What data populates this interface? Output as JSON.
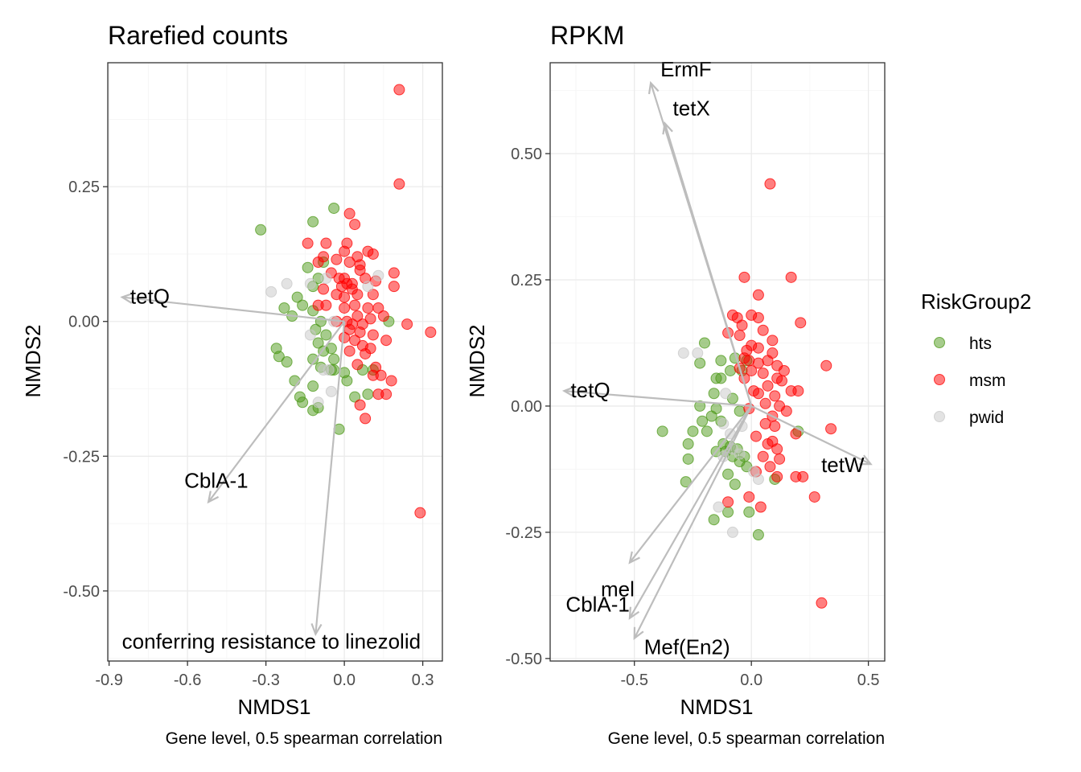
{
  "legend": {
    "title": "RiskGroup2",
    "items": [
      {
        "label": "hts",
        "color": "#4d9a1a"
      },
      {
        "label": "msm",
        "color": "#ff0000"
      },
      {
        "label": "pwid",
        "color": "#c8c8c8"
      }
    ]
  },
  "chart_data": [
    {
      "type": "scatter",
      "title": "Rarefied counts",
      "xlabel": "NMDS1",
      "ylabel": "NMDS2",
      "caption": "Gene level, 0.5 spearman correlation",
      "xlim": [
        -0.905,
        0.375
      ],
      "ylim": [
        -0.63,
        0.48
      ],
      "xticks": [
        -0.9,
        -0.6,
        -0.3,
        0.0,
        0.3
      ],
      "xtick_labels": [
        "-0.9",
        "-0.6",
        "-0.3",
        "0.0",
        "0.3"
      ],
      "yticks": [
        0.25,
        0.0,
        -0.25,
        -0.5
      ],
      "ytick_labels": [
        "0.25",
        "0.00",
        "-0.25",
        "-0.50"
      ],
      "vectors": [
        {
          "label": "tetQ",
          "x": -0.85,
          "y": 0.045
        },
        {
          "label": "CblA-1",
          "x": -0.52,
          "y": -0.335
        },
        {
          "label": "conferring resistance to linezolid",
          "x": -0.11,
          "y": -0.58
        }
      ],
      "series": [
        {
          "name": "hts",
          "points": [
            [
              -0.32,
              0.17
            ],
            [
              -0.12,
              0.185
            ],
            [
              -0.04,
              0.21
            ],
            [
              -0.14,
              0.1
            ],
            [
              -0.1,
              0.08
            ],
            [
              -0.08,
              0.11
            ],
            [
              -0.12,
              0.065
            ],
            [
              -0.18,
              0.045
            ],
            [
              -0.23,
              0.025
            ],
            [
              -0.16,
              0.03
            ],
            [
              -0.2,
              0.01
            ],
            [
              -0.12,
              0.02
            ],
            [
              -0.09,
              0.0
            ],
            [
              -0.11,
              -0.015
            ],
            [
              -0.07,
              -0.025
            ],
            [
              -0.26,
              -0.05
            ],
            [
              -0.25,
              -0.065
            ],
            [
              -0.22,
              -0.075
            ],
            [
              -0.1,
              -0.04
            ],
            [
              -0.08,
              -0.055
            ],
            [
              -0.05,
              -0.05
            ],
            [
              -0.12,
              -0.07
            ],
            [
              -0.09,
              -0.085
            ],
            [
              -0.04,
              -0.07
            ],
            [
              -0.19,
              -0.11
            ],
            [
              -0.12,
              -0.12
            ],
            [
              -0.17,
              -0.14
            ],
            [
              -0.16,
              -0.15
            ],
            [
              -0.12,
              -0.165
            ],
            [
              -0.04,
              -0.09
            ],
            [
              -0.05,
              -0.09
            ],
            [
              -0.0,
              -0.095
            ],
            [
              0.01,
              -0.11
            ],
            [
              0.07,
              -0.09
            ],
            [
              0.04,
              -0.14
            ],
            [
              0.09,
              -0.135
            ],
            [
              -0.1,
              -0.16
            ],
            [
              -0.02,
              -0.2
            ],
            [
              0.11,
              -0.09
            ],
            [
              0.17,
              0.0
            ]
          ]
        },
        {
          "name": "msm",
          "points": [
            [
              0.21,
              0.43
            ],
            [
              0.21,
              0.255
            ],
            [
              0.02,
              0.2
            ],
            [
              0.04,
              0.18
            ],
            [
              -0.14,
              0.145
            ],
            [
              -0.07,
              0.145
            ],
            [
              0.01,
              0.145
            ],
            [
              0.05,
              0.12
            ],
            [
              -0.08,
              0.12
            ],
            [
              -0.03,
              0.115
            ],
            [
              0.0,
              0.13
            ],
            [
              0.11,
              0.125
            ],
            [
              0.09,
              0.13
            ],
            [
              -0.1,
              0.11
            ],
            [
              0.02,
              0.11
            ],
            [
              -0.05,
              0.09
            ],
            [
              0.06,
              0.095
            ],
            [
              0.0,
              0.08
            ],
            [
              -0.02,
              0.08
            ],
            [
              0.03,
              0.07
            ],
            [
              0.08,
              0.08
            ],
            [
              0.19,
              0.09
            ],
            [
              0.03,
              0.06
            ],
            [
              0.01,
              0.07
            ],
            [
              -0.01,
              0.065
            ],
            [
              0.05,
              0.05
            ],
            [
              0.11,
              0.05
            ],
            [
              0.19,
              0.065
            ],
            [
              -0.08,
              0.06
            ],
            [
              -0.03,
              0.05
            ],
            [
              0.0,
              0.045
            ],
            [
              -0.07,
              0.03
            ],
            [
              0.04,
              0.03
            ],
            [
              0.09,
              0.025
            ],
            [
              0.13,
              0.025
            ],
            [
              -0.1,
              0.03
            ],
            [
              0.05,
              0.01
            ],
            [
              -0.03,
              0.0
            ],
            [
              0.01,
              0.0
            ],
            [
              0.03,
              -0.005
            ],
            [
              0.07,
              -0.005
            ],
            [
              0.1,
              0.005
            ],
            [
              0.15,
              0.01
            ],
            [
              0.24,
              -0.005
            ],
            [
              0.33,
              -0.02
            ],
            [
              0.02,
              -0.015
            ],
            [
              0.06,
              -0.02
            ],
            [
              0.11,
              -0.025
            ],
            [
              0.16,
              -0.035
            ],
            [
              -0.0,
              -0.03
            ],
            [
              0.04,
              -0.035
            ],
            [
              0.07,
              -0.045
            ],
            [
              0.1,
              -0.05
            ],
            [
              0.02,
              -0.055
            ],
            [
              0.08,
              -0.06
            ],
            [
              0.05,
              -0.08
            ],
            [
              0.12,
              -0.085
            ],
            [
              0.14,
              -0.1
            ],
            [
              0.11,
              -0.1
            ],
            [
              0.18,
              -0.11
            ],
            [
              0.13,
              -0.135
            ],
            [
              0.16,
              -0.135
            ],
            [
              0.06,
              -0.155
            ],
            [
              0.08,
              -0.18
            ],
            [
              0.29,
              -0.355
            ],
            [
              0.0,
              0.025
            ],
            [
              0.06,
              0.105
            ],
            [
              0.12,
              0.075
            ]
          ]
        },
        {
          "name": "pwid",
          "points": [
            [
              -0.28,
              0.055
            ],
            [
              -0.22,
              0.07
            ],
            [
              -0.13,
              0.07
            ],
            [
              -0.07,
              0.08
            ],
            [
              0.13,
              0.085
            ],
            [
              0.09,
              0.065
            ],
            [
              -0.04,
              0.0
            ],
            [
              -0.13,
              -0.025
            ],
            [
              -0.08,
              -0.09
            ],
            [
              -0.1,
              -0.15
            ],
            [
              -0.05,
              -0.13
            ],
            [
              -0.06,
              -0.09
            ]
          ]
        }
      ]
    },
    {
      "type": "scatter",
      "title": "RPKM",
      "xlabel": "NMDS1",
      "ylabel": "NMDS2",
      "caption": "Gene level, 0.5 spearman correlation",
      "xlim": [
        -0.86,
        0.57
      ],
      "ylim": [
        -0.505,
        0.68
      ],
      "xticks": [
        -0.5,
        0.0,
        0.5
      ],
      "xtick_labels": [
        "-0.5",
        "0.0",
        "0.5"
      ],
      "yticks": [
        0.5,
        0.25,
        0.0,
        -0.25,
        -0.5
      ],
      "ytick_labels": [
        "0.50",
        "0.25",
        "0.00",
        "-0.25",
        "-0.50"
      ],
      "vectors": [
        {
          "label": "ErmF",
          "x": -0.43,
          "y": 0.64
        },
        {
          "label": "tetX",
          "x": -0.37,
          "y": 0.56
        },
        {
          "label": "tetQ",
          "x": -0.8,
          "y": 0.03
        },
        {
          "label": "tetW",
          "x": 0.51,
          "y": -0.115
        },
        {
          "label": "mel",
          "x": -0.52,
          "y": -0.31
        },
        {
          "label": "CblA-1",
          "x": -0.52,
          "y": -0.42
        },
        {
          "label": "Mef(En2)",
          "x": -0.5,
          "y": -0.46
        }
      ],
      "series": [
        {
          "name": "hts",
          "points": [
            [
              -0.2,
              0.125
            ],
            [
              -0.22,
              0.085
            ],
            [
              -0.13,
              0.09
            ],
            [
              -0.15,
              0.055
            ],
            [
              -0.13,
              0.055
            ],
            [
              -0.09,
              0.07
            ],
            [
              -0.07,
              0.095
            ],
            [
              -0.04,
              0.07
            ],
            [
              -0.02,
              0.09
            ],
            [
              -0.16,
              0.025
            ],
            [
              -0.08,
              0.015
            ],
            [
              -0.22,
              0.0
            ],
            [
              -0.15,
              -0.005
            ],
            [
              -0.17,
              -0.02
            ],
            [
              -0.21,
              -0.03
            ],
            [
              -0.13,
              -0.03
            ],
            [
              -0.05,
              -0.01
            ],
            [
              -0.25,
              -0.05
            ],
            [
              -0.19,
              -0.05
            ],
            [
              -0.27,
              -0.075
            ],
            [
              -0.12,
              -0.075
            ],
            [
              -0.09,
              -0.08
            ],
            [
              -0.27,
              -0.105
            ],
            [
              -0.15,
              -0.09
            ],
            [
              -0.11,
              -0.09
            ],
            [
              -0.08,
              -0.1
            ],
            [
              -0.06,
              -0.085
            ],
            [
              -0.03,
              -0.1
            ],
            [
              -0.05,
              -0.11
            ],
            [
              -0.02,
              -0.12
            ],
            [
              -0.1,
              -0.135
            ],
            [
              -0.28,
              -0.15
            ],
            [
              -0.07,
              -0.155
            ],
            [
              -0.1,
              -0.21
            ],
            [
              -0.16,
              -0.225
            ],
            [
              -0.01,
              -0.21
            ],
            [
              0.03,
              -0.255
            ],
            [
              0.1,
              -0.145
            ],
            [
              0.2,
              -0.05
            ],
            [
              -0.38,
              -0.05
            ]
          ]
        },
        {
          "name": "msm",
          "points": [
            [
              0.08,
              0.44
            ],
            [
              -0.03,
              0.255
            ],
            [
              0.17,
              0.255
            ],
            [
              0.03,
              0.22
            ],
            [
              0.21,
              0.165
            ],
            [
              -0.08,
              0.18
            ],
            [
              -0.06,
              0.175
            ],
            [
              0.0,
              0.18
            ],
            [
              0.03,
              0.175
            ],
            [
              -0.04,
              0.16
            ],
            [
              -0.1,
              0.145
            ],
            [
              0.05,
              0.15
            ],
            [
              -0.05,
              0.14
            ],
            [
              0.09,
              0.13
            ],
            [
              -0.0,
              0.12
            ],
            [
              0.03,
              0.115
            ],
            [
              0.09,
              0.105
            ],
            [
              0.32,
              0.08
            ],
            [
              -0.03,
              0.095
            ],
            [
              -0.01,
              0.09
            ],
            [
              0.03,
              0.085
            ],
            [
              0.07,
              0.09
            ],
            [
              0.11,
              0.08
            ],
            [
              -0.05,
              0.075
            ],
            [
              0.0,
              0.07
            ],
            [
              0.05,
              0.065
            ],
            [
              0.11,
              0.055
            ],
            [
              0.13,
              0.05
            ],
            [
              -0.03,
              0.055
            ],
            [
              0.07,
              0.04
            ],
            [
              0.17,
              0.03
            ],
            [
              0.03,
              0.025
            ],
            [
              0.1,
              0.02
            ],
            [
              0.2,
              0.03
            ],
            [
              0.06,
              0.005
            ],
            [
              0.12,
              0.0
            ],
            [
              0.15,
              -0.01
            ],
            [
              -0.01,
              -0.005
            ],
            [
              0.09,
              -0.02
            ],
            [
              0.06,
              -0.035
            ],
            [
              0.1,
              -0.04
            ],
            [
              0.34,
              -0.045
            ],
            [
              0.02,
              -0.06
            ],
            [
              0.09,
              -0.07
            ],
            [
              0.07,
              -0.075
            ],
            [
              0.19,
              -0.055
            ],
            [
              0.11,
              -0.085
            ],
            [
              0.05,
              -0.1
            ],
            [
              0.12,
              -0.105
            ],
            [
              0.02,
              -0.13
            ],
            [
              0.08,
              -0.12
            ],
            [
              0.11,
              -0.14
            ],
            [
              0.19,
              -0.14
            ],
            [
              0.22,
              -0.14
            ],
            [
              -0.01,
              -0.18
            ],
            [
              -0.1,
              -0.19
            ],
            [
              0.04,
              -0.2
            ],
            [
              0.27,
              -0.18
            ],
            [
              0.3,
              -0.39
            ],
            [
              0.01,
              0.03
            ],
            [
              -0.02,
              0.11
            ],
            [
              0.14,
              0.07
            ]
          ]
        },
        {
          "name": "pwid",
          "points": [
            [
              -0.29,
              0.105
            ],
            [
              -0.23,
              0.105
            ],
            [
              -0.11,
              0.025
            ],
            [
              -0.12,
              -0.035
            ],
            [
              -0.09,
              -0.055
            ],
            [
              -0.04,
              -0.04
            ],
            [
              -0.08,
              -0.085
            ],
            [
              -0.05,
              -0.095
            ],
            [
              -0.12,
              -0.1
            ],
            [
              0.01,
              -0.13
            ],
            [
              0.03,
              -0.145
            ],
            [
              -0.14,
              -0.2
            ],
            [
              -0.08,
              -0.25
            ]
          ]
        }
      ]
    }
  ]
}
